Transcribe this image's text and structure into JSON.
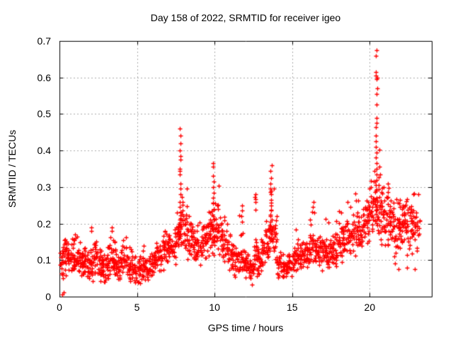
{
  "chart_data": {
    "type": "scatter",
    "title": "Day 158 of 2022, SRMTID for receiver igeo",
    "xlabel": "GPS time / hours",
    "ylabel": "SRMTID / TECUs",
    "xlim": [
      0,
      24
    ],
    "ylim": [
      0,
      0.7
    ],
    "xticks": [
      0,
      5,
      10,
      15,
      20
    ],
    "xtick_labels": [
      "0",
      "5",
      "10",
      "15",
      "20"
    ],
    "yticks": [
      0,
      0.1,
      0.2,
      0.3,
      0.4,
      0.5,
      0.6,
      0.7
    ],
    "ytick_labels": [
      "0",
      "0.1",
      "0.2",
      "0.3",
      "0.4",
      "0.5",
      "0.6",
      "0.7"
    ],
    "grid": true,
    "legend": "none",
    "marker": {
      "shape": "plus",
      "color": "#ff0000",
      "size": 7
    },
    "colors": {
      "axis": "#000000",
      "grid": "#aaaaaa",
      "background": "#ffffff",
      "text": "#000000"
    },
    "seed": 20220158,
    "density_bins": [
      [
        0.0,
        0.25,
        18,
        0.03,
        0.09,
        0.17
      ],
      [
        0.25,
        0.5,
        20,
        0.03,
        0.1,
        0.17
      ],
      [
        0.5,
        0.75,
        20,
        0.05,
        0.1,
        0.16
      ],
      [
        0.75,
        1.0,
        20,
        0.04,
        0.1,
        0.17
      ],
      [
        1.0,
        1.25,
        20,
        0.05,
        0.11,
        0.18
      ],
      [
        1.25,
        1.5,
        20,
        0.04,
        0.1,
        0.19
      ],
      [
        1.5,
        1.75,
        20,
        0.05,
        0.09,
        0.16
      ],
      [
        1.75,
        2.0,
        20,
        0.04,
        0.09,
        0.15
      ],
      [
        2.0,
        2.25,
        20,
        0.03,
        0.09,
        0.17
      ],
      [
        2.25,
        2.5,
        20,
        0.04,
        0.1,
        0.18
      ],
      [
        2.5,
        2.75,
        20,
        0.04,
        0.09,
        0.15
      ],
      [
        2.75,
        3.0,
        20,
        0.03,
        0.08,
        0.14
      ],
      [
        3.0,
        3.25,
        20,
        0.04,
        0.09,
        0.17
      ],
      [
        3.25,
        3.5,
        20,
        0.05,
        0.1,
        0.19
      ],
      [
        3.5,
        3.75,
        20,
        0.04,
        0.09,
        0.16
      ],
      [
        3.75,
        4.0,
        20,
        0.03,
        0.08,
        0.15
      ],
      [
        4.0,
        4.25,
        20,
        0.04,
        0.1,
        0.18
      ],
      [
        4.25,
        4.5,
        20,
        0.05,
        0.1,
        0.17
      ],
      [
        4.5,
        4.75,
        20,
        0.03,
        0.08,
        0.15
      ],
      [
        4.75,
        5.0,
        18,
        0.03,
        0.07,
        0.13
      ],
      [
        5.0,
        5.25,
        18,
        0.03,
        0.07,
        0.12
      ],
      [
        5.25,
        5.5,
        18,
        0.04,
        0.08,
        0.14
      ],
      [
        5.5,
        5.75,
        18,
        0.03,
        0.07,
        0.12
      ],
      [
        5.75,
        6.0,
        18,
        0.04,
        0.08,
        0.13
      ],
      [
        6.0,
        6.25,
        18,
        0.05,
        0.09,
        0.15
      ],
      [
        6.25,
        6.5,
        18,
        0.05,
        0.1,
        0.17
      ],
      [
        6.5,
        6.75,
        18,
        0.06,
        0.12,
        0.19
      ],
      [
        6.75,
        7.0,
        18,
        0.07,
        0.13,
        0.22
      ],
      [
        7.0,
        7.25,
        18,
        0.08,
        0.13,
        0.2
      ],
      [
        7.25,
        7.5,
        18,
        0.08,
        0.14,
        0.22
      ],
      [
        7.5,
        7.75,
        20,
        0.1,
        0.17,
        0.33
      ],
      [
        7.75,
        8.0,
        24,
        0.11,
        0.2,
        0.3
      ],
      [
        8.0,
        8.25,
        20,
        0.1,
        0.18,
        0.3
      ],
      [
        8.25,
        8.5,
        18,
        0.08,
        0.15,
        0.24
      ],
      [
        8.5,
        8.75,
        18,
        0.08,
        0.14,
        0.22
      ],
      [
        8.75,
        9.0,
        18,
        0.08,
        0.13,
        0.2
      ],
      [
        9.0,
        9.25,
        18,
        0.08,
        0.13,
        0.22
      ],
      [
        9.25,
        9.5,
        18,
        0.09,
        0.15,
        0.26
      ],
      [
        9.5,
        9.75,
        20,
        0.1,
        0.17,
        0.32
      ],
      [
        9.75,
        10.0,
        22,
        0.1,
        0.19,
        0.3
      ],
      [
        10.0,
        10.25,
        20,
        0.1,
        0.18,
        0.31
      ],
      [
        10.25,
        10.5,
        18,
        0.09,
        0.16,
        0.27
      ],
      [
        10.5,
        10.75,
        18,
        0.08,
        0.14,
        0.22
      ],
      [
        10.75,
        11.0,
        18,
        0.07,
        0.13,
        0.2
      ],
      [
        11.0,
        11.25,
        18,
        0.06,
        0.11,
        0.18
      ],
      [
        11.25,
        11.5,
        18,
        0.05,
        0.1,
        0.16
      ],
      [
        11.5,
        11.75,
        18,
        0.06,
        0.11,
        0.25
      ],
      [
        11.75,
        12.0,
        18,
        0.05,
        0.1,
        0.22
      ],
      [
        12.0,
        12.25,
        18,
        0.04,
        0.08,
        0.14
      ],
      [
        12.25,
        12.5,
        18,
        0.03,
        0.07,
        0.13
      ],
      [
        12.5,
        12.75,
        18,
        0.04,
        0.1,
        0.24
      ],
      [
        12.75,
        13.0,
        18,
        0.05,
        0.1,
        0.2
      ],
      [
        13.0,
        13.25,
        18,
        0.06,
        0.12,
        0.22
      ],
      [
        13.25,
        13.5,
        18,
        0.08,
        0.14,
        0.28
      ],
      [
        13.5,
        13.75,
        22,
        0.1,
        0.18,
        0.3
      ],
      [
        13.75,
        14.0,
        20,
        0.08,
        0.15,
        0.3
      ],
      [
        14.0,
        14.25,
        18,
        0.05,
        0.09,
        0.16
      ],
      [
        14.25,
        14.5,
        18,
        0.04,
        0.08,
        0.14
      ],
      [
        14.5,
        14.75,
        18,
        0.04,
        0.08,
        0.13
      ],
      [
        14.75,
        15.0,
        18,
        0.05,
        0.09,
        0.15
      ],
      [
        15.0,
        15.25,
        18,
        0.06,
        0.1,
        0.2
      ],
      [
        15.25,
        15.5,
        18,
        0.05,
        0.1,
        0.16
      ],
      [
        15.5,
        15.75,
        18,
        0.06,
        0.11,
        0.18
      ],
      [
        15.75,
        16.0,
        18,
        0.06,
        0.11,
        0.19
      ],
      [
        16.0,
        16.25,
        18,
        0.07,
        0.12,
        0.22
      ],
      [
        16.25,
        16.5,
        18,
        0.08,
        0.13,
        0.26
      ],
      [
        16.5,
        16.75,
        18,
        0.07,
        0.12,
        0.2
      ],
      [
        16.75,
        17.0,
        18,
        0.07,
        0.12,
        0.22
      ],
      [
        17.0,
        17.25,
        18,
        0.08,
        0.13,
        0.28
      ],
      [
        17.25,
        17.5,
        18,
        0.07,
        0.12,
        0.22
      ],
      [
        17.5,
        17.75,
        18,
        0.06,
        0.12,
        0.2
      ],
      [
        17.75,
        18.0,
        18,
        0.07,
        0.13,
        0.22
      ],
      [
        18.0,
        18.25,
        18,
        0.08,
        0.14,
        0.24
      ],
      [
        18.25,
        18.5,
        18,
        0.09,
        0.15,
        0.26
      ],
      [
        18.5,
        18.75,
        18,
        0.1,
        0.16,
        0.28
      ],
      [
        18.75,
        19.0,
        18,
        0.1,
        0.16,
        0.26
      ],
      [
        19.0,
        19.25,
        18,
        0.1,
        0.17,
        0.3
      ],
      [
        19.25,
        19.5,
        20,
        0.11,
        0.18,
        0.3
      ],
      [
        19.5,
        19.75,
        20,
        0.12,
        0.2,
        0.32
      ],
      [
        19.75,
        20.0,
        20,
        0.12,
        0.21,
        0.34
      ],
      [
        20.0,
        20.25,
        20,
        0.12,
        0.22,
        0.36
      ],
      [
        20.25,
        20.5,
        24,
        0.13,
        0.25,
        0.38
      ],
      [
        20.5,
        20.75,
        22,
        0.12,
        0.24,
        0.42
      ],
      [
        20.75,
        21.0,
        20,
        0.12,
        0.22,
        0.36
      ],
      [
        21.0,
        21.25,
        20,
        0.12,
        0.22,
        0.35
      ],
      [
        21.25,
        21.5,
        20,
        0.11,
        0.21,
        0.35
      ],
      [
        21.5,
        21.75,
        20,
        0.1,
        0.19,
        0.32
      ],
      [
        21.75,
        22.0,
        20,
        0.09,
        0.18,
        0.3
      ],
      [
        22.0,
        22.25,
        20,
        0.1,
        0.19,
        0.3
      ],
      [
        22.25,
        22.5,
        20,
        0.09,
        0.18,
        0.28
      ],
      [
        22.5,
        22.75,
        18,
        0.1,
        0.18,
        0.28
      ],
      [
        22.75,
        23.0,
        16,
        0.12,
        0.19,
        0.3
      ],
      [
        23.0,
        23.25,
        12,
        0.12,
        0.18,
        0.29
      ]
    ],
    "spike_columns": [
      {
        "t": 7.78,
        "ys": [
          0.46,
          0.44,
          0.42,
          0.4,
          0.385,
          0.375,
          0.35,
          0.345,
          0.335,
          0.31,
          0.295,
          0.28,
          0.26,
          0.245,
          0.23,
          0.215,
          0.2,
          0.185,
          0.17
        ]
      },
      {
        "t": 9.9,
        "ys": [
          0.365,
          0.355,
          0.33,
          0.315,
          0.3,
          0.285,
          0.27,
          0.255,
          0.24,
          0.225,
          0.21,
          0.195,
          0.18,
          0.165,
          0.15
        ]
      },
      {
        "t": 13.62,
        "ys": [
          0.36,
          0.345,
          0.325,
          0.31,
          0.295,
          0.28,
          0.265,
          0.25,
          0.235,
          0.22,
          0.205,
          0.19,
          0.175,
          0.16
        ]
      },
      {
        "t": 20.42,
        "ys": [
          0.675,
          0.66,
          0.615,
          0.605,
          0.6,
          0.595,
          0.57,
          0.555,
          0.525,
          0.49,
          0.475,
          0.465,
          0.44,
          0.425,
          0.41,
          0.395,
          0.38,
          0.365,
          0.35,
          0.335,
          0.32,
          0.305,
          0.29
        ]
      },
      {
        "t": 11.78,
        "ys": [
          0.25,
          0.235,
          0.22,
          0.205
        ]
      },
      {
        "t": 12.63,
        "ys": [
          0.28,
          0.273,
          0.267,
          0.26
        ]
      },
      {
        "t": 16.38,
        "ys": [
          0.26,
          0.245,
          0.23
        ]
      },
      {
        "t": 2.05,
        "ys": [
          0.19,
          0.18
        ]
      },
      {
        "t": 3.38,
        "ys": [
          0.19,
          0.18
        ]
      }
    ],
    "extra_points": [
      [
        0.2,
        0.006
      ],
      [
        0.27,
        0.012
      ],
      [
        21.85,
        0.075
      ],
      [
        22.4,
        0.08
      ],
      [
        21.62,
        0.09
      ],
      [
        22.9,
        0.075
      ],
      [
        23.15,
        0.28
      ]
    ]
  }
}
